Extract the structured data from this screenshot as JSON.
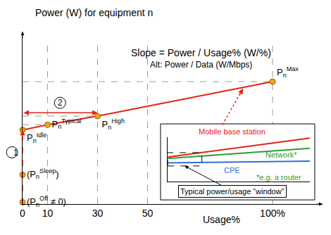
{
  "chart_data": {
    "type": "line",
    "xlabel": "Usage%",
    "ylabel": "Power (W) for equipment n",
    "xlim": [
      0,
      120
    ],
    "xticks": [
      0,
      10,
      30,
      50,
      {
        "value": 100,
        "label": "100%"
      }
    ],
    "ylim": [
      0,
      100
    ],
    "yticks": [],
    "tick_labels": "x",
    "grid": true,
    "annotations": [
      "Slope = Power / Usage% (W/%)",
      "Alt: Power / Data (W/Mbps)"
    ],
    "steps": [
      "1",
      "2"
    ],
    "series": [
      {
        "type": "line",
        "color": "#e3241b",
        "colors": [
          "#f5a31a",
          "#f5a31a",
          "#f5a31a",
          "#f5a31a"
        ],
        "marker": "circle",
        "line_style": "solid",
        "x": [
          0,
          10,
          30,
          100
        ],
        "values": [
          43,
          46,
          51,
          71
        ],
        "point_labels": [
          {
            "base": "P",
            "sub": "n",
            "sup": "Idle"
          },
          {
            "base": "P",
            "sub": "n",
            "sup": "Typical"
          },
          {
            "base": "P",
            "sub": "n",
            "sup": "High"
          },
          {
            "base": "P",
            "sub": "n",
            "sup": "Max"
          }
        ]
      },
      {
        "type": "scatter",
        "color": "#f5a31a",
        "marker": "circle",
        "x": [
          0,
          0
        ],
        "values": [
          17,
          1
        ],
        "point_labels": [
          {
            "base": "(P",
            "sub": "n",
            "sup": "Sleep",
            "suffix": ")"
          },
          {
            "base": "(P",
            "sub": "n",
            "sup": "Off",
            "suffix": " ≠ 0)"
          }
        ]
      }
    ],
    "inset": {
      "type": "line",
      "xlim": [
        0,
        100
      ],
      "ylim": [
        0,
        100
      ],
      "series": [
        {
          "name": "Mobile base station",
          "color": "#e3241b",
          "x": [
            0,
            100
          ],
          "values": [
            55,
            98
          ]
        },
        {
          "name": "Network*",
          "color": "#2ca02c",
          "x": [
            0,
            100
          ],
          "values": [
            52,
            75
          ]
        },
        {
          "name": "CPE",
          "color": "#2f6fd6",
          "x": [
            0,
            100
          ],
          "values": [
            42,
            46
          ]
        }
      ],
      "window": {
        "x": [
          0,
          24
        ],
        "y": [
          35,
          65
        ]
      },
      "window_label": "Typical power/usage “window”",
      "note": "*e.g. a router"
    }
  }
}
